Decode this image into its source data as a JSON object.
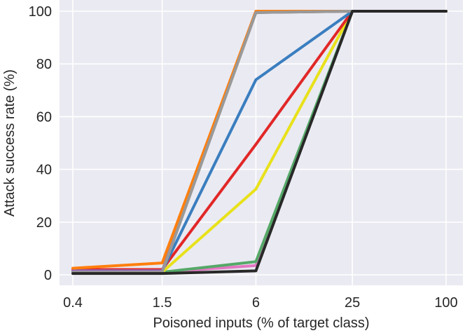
{
  "chart_data": {
    "type": "line",
    "title": "",
    "xlabel": "Poisoned inputs (% of target class)",
    "ylabel": "Attack success rate (%)",
    "x": [
      "0.4",
      "1.5",
      "6",
      "25",
      "100"
    ],
    "xscale": "log",
    "ylim": [
      -3,
      101
    ],
    "yticks": [
      "0",
      "20",
      "40",
      "60",
      "80",
      "100"
    ],
    "grid": true,
    "legend": "none",
    "background": "#eaeaf2",
    "series": [
      {
        "color": "#e377c2",
        "values": [
          1,
          1,
          3.5,
          100,
          100
        ]
      },
      {
        "color": "#55a868",
        "values": [
          1,
          1,
          5,
          100,
          100
        ]
      },
      {
        "color": "#e8e11a",
        "values": [
          1,
          1,
          32.5,
          100,
          100
        ]
      },
      {
        "color": "#e12727",
        "values": [
          2,
          2,
          49.5,
          100,
          100
        ]
      },
      {
        "color": "#3a7ebf",
        "values": [
          1.5,
          1.5,
          74,
          100,
          100
        ]
      },
      {
        "color": "#8c564b",
        "values": [
          1.5,
          1.5,
          99.5,
          100,
          100
        ]
      },
      {
        "color": "#9467bd",
        "values": [
          1.5,
          1.5,
          100,
          100,
          100
        ]
      },
      {
        "color": "#ff7f0e",
        "values": [
          2.5,
          4.5,
          100,
          100,
          100
        ]
      },
      {
        "color": "#999999",
        "values": [
          1,
          1,
          99.5,
          100,
          100
        ]
      },
      {
        "color": "#282828",
        "values": [
          0.5,
          0.5,
          1.5,
          100,
          100
        ]
      }
    ]
  }
}
